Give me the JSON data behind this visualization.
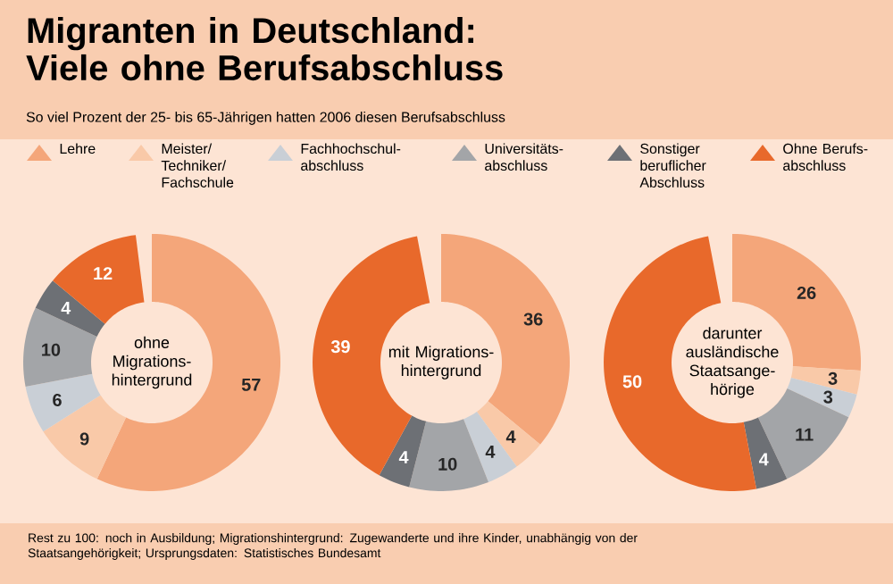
{
  "chart_data": {
    "type": "donut",
    "title": "Migranten in Deutschland: Viele ohne Berufsabschluss",
    "subtitle": "So viel Prozent der 25- bis 65-Jährigen hatten 2006 diesen Berufsabschluss",
    "legend": "top",
    "data_labels": true,
    "categories": [
      "Lehre",
      "Meister/ Techniker/ Fachschule",
      "Fachhochschul-abschluss",
      "Universitäts-abschluss",
      "Sonstiger beruflicher Abschluss",
      "Ohne Berufs-abschluss"
    ],
    "colors": [
      "#f4a67a",
      "#f9c9a8",
      "#c9cfd6",
      "#a3a5a8",
      "#6d7075",
      "#e8692b"
    ],
    "series": [
      {
        "name": "ohne Migrations-hintergrund",
        "values": [
          57,
          9,
          6,
          10,
          4,
          12
        ]
      },
      {
        "name": "mit Migrations-hintergrund",
        "values": [
          36,
          4,
          4,
          10,
          4,
          39
        ]
      },
      {
        "name": "darunter ausländische Staatsange-hörige",
        "values": [
          26,
          3,
          3,
          11,
          4,
          50
        ]
      }
    ],
    "annotations": [
      "Rest zu 100: noch in Ausbildung; Migrationshintergrund: Zugewanderte und ihre Kinder, unabhängig von der Staatsangehörigkeit; Ursprungsdaten: Statistisches Bundesamt"
    ]
  }
}
